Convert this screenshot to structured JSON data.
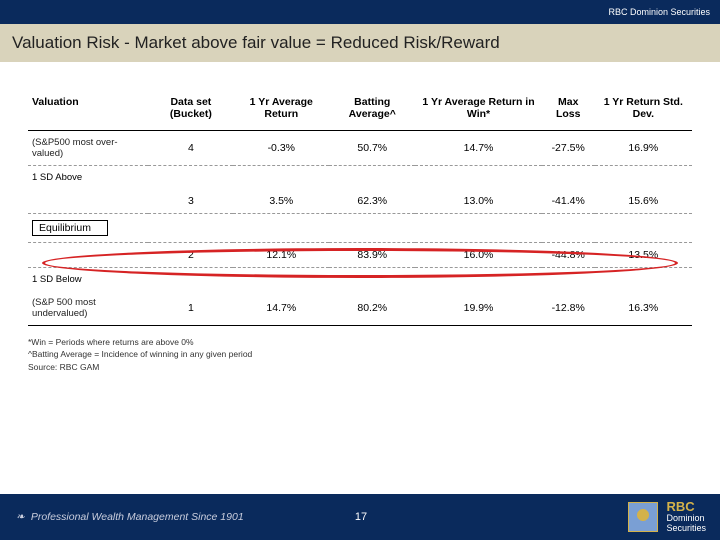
{
  "header": {
    "brand": "RBC Dominion Securities"
  },
  "title": "Valuation Risk - Market above fair value = Reduced Risk/Reward",
  "table": {
    "headers": [
      "Valuation",
      "Data set (Bucket)",
      "1 Yr Average Return",
      "Batting Average^",
      "1 Yr Average Return in Win*",
      "Max Loss",
      "1 Yr Return Std. Dev."
    ],
    "rows": [
      {
        "label": "(S&P500 most over-valued)",
        "cells": [
          "4",
          "-0.3%",
          "50.7%",
          "14.7%",
          "-27.5%",
          "16.9%"
        ],
        "dashed": true
      },
      {
        "label": "1 SD Above",
        "cells": [
          "",
          "",
          "",
          "",
          "",
          ""
        ],
        "dashed": false
      },
      {
        "label": "",
        "cells": [
          "3",
          "3.5%",
          "62.3%",
          "13.0%",
          "-41.4%",
          "15.6%"
        ],
        "dashed": true,
        "highlighted": true
      },
      {
        "label": "Equilibrium",
        "cells": [
          "",
          "",
          "",
          "",
          "",
          ""
        ],
        "boxed": true,
        "dashed": true
      },
      {
        "label": "",
        "cells": [
          "2",
          "12.1%",
          "83.9%",
          "16.0%",
          "-44.8%",
          "13.5%"
        ],
        "dashed": true
      },
      {
        "label": "1 SD Below",
        "cells": [
          "",
          "",
          "",
          "",
          "",
          ""
        ],
        "dashed": false
      },
      {
        "label": "(S&P 500 most undervalued)",
        "cells": [
          "1",
          "14.7%",
          "80.2%",
          "19.9%",
          "-12.8%",
          "16.3%"
        ],
        "dashed": false,
        "bottomline": true
      }
    ]
  },
  "footnotes": [
    "*Win = Periods where returns are above 0%",
    "^Batting Average = Incidence of winning in any given period",
    "Source: RBC GAM"
  ],
  "footer": {
    "tagline": "Professional Wealth Management Since 1901",
    "page": "17",
    "logo_name": "RBC",
    "logo_sub": "Dominion\nSecurities"
  },
  "colors": {
    "navy": "#0a2a5c",
    "band": "#d9d3bb",
    "highlight": "#d62324",
    "gold": "#d4b24a"
  }
}
